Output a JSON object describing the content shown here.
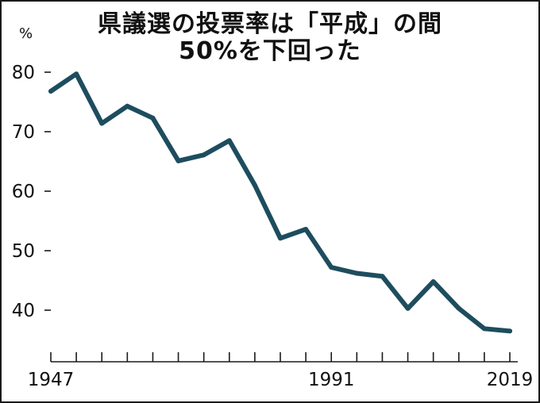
{
  "title_line1": "県議選の投票率は「平成」の間",
  "title_line2": "50%を下回った",
  "chart_data": {
    "type": "line",
    "title": "県議選の投票率は「平成」の間 50%を下回った",
    "unit": "%",
    "x_tick_labels": [
      "1947",
      "1991",
      "2019"
    ],
    "y_ticks": [
      40,
      50,
      60,
      70,
      80
    ],
    "ylim": [
      34,
      84
    ],
    "line_color": "#1d4d5e",
    "series": [
      {
        "x": [
          1947,
          1951,
          1955,
          1959,
          1963,
          1967,
          1971,
          1975,
          1979,
          1983,
          1987,
          1991,
          1995,
          1999,
          2003,
          2007,
          2011,
          2015,
          2019
        ],
        "values": [
          76.8,
          79.7,
          71.4,
          74.3,
          72.3,
          65.1,
          66.1,
          68.5,
          61.0,
          52.1,
          53.6,
          47.2,
          46.2,
          45.7,
          40.3,
          44.8,
          40.3,
          36.9,
          36.5
        ]
      }
    ]
  }
}
